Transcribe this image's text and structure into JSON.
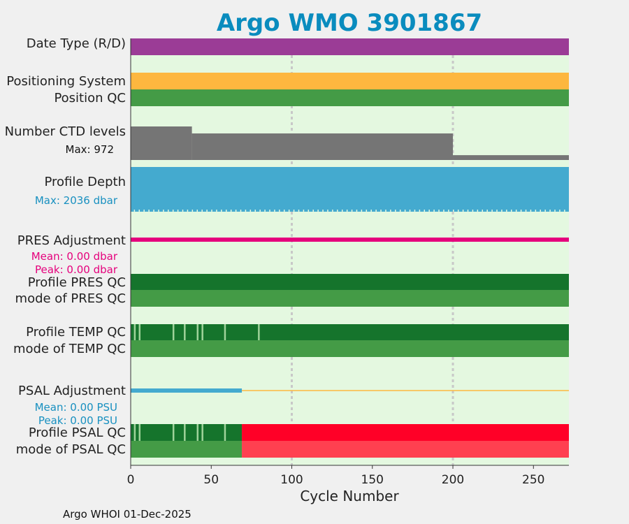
{
  "chart_data": {
    "type": "bar",
    "title": "Argo WMO 3901867",
    "xlabel": "Cycle Number",
    "xlim": [
      0,
      272
    ],
    "xticks": [
      0,
      50,
      100,
      150,
      200,
      250
    ],
    "grid_x": [
      100,
      200
    ],
    "footer": "Argo WHOI 01-Dec-2025",
    "rows": [
      {
        "key": "date_type",
        "label": "Date Type (R/D)",
        "segments": [
          {
            "x0": 0,
            "x1": 272,
            "color": "#9b3c96"
          }
        ]
      },
      {
        "key": "positioning",
        "label": "Positioning System",
        "segments": [
          {
            "x0": 0,
            "x1": 272,
            "color": "#fdb73f"
          }
        ]
      },
      {
        "key": "position_qc",
        "label": "Position QC",
        "segments": [
          {
            "x0": 0,
            "x1": 272,
            "color": "#449b46"
          }
        ]
      },
      {
        "key": "ctd_levels",
        "label": "Number CTD levels",
        "sublabel": "Max: 972",
        "steps": [
          {
            "x0": 0,
            "x1": 38,
            "value": 972
          },
          {
            "x0": 38,
            "x1": 200,
            "value": 770
          },
          {
            "x0": 200,
            "x1": 272,
            "value": 140
          }
        ],
        "ymax": 972,
        "color": "#757575"
      },
      {
        "key": "profile_depth",
        "label": "Profile Depth",
        "sublabel": "Max: 2036 dbar",
        "max_depth": 2036,
        "color": "#44aacf"
      },
      {
        "key": "pres_adj",
        "label": "PRES Adjustment",
        "sublabel": "Mean: 0.00 dbar",
        "sublabel2": "Peak: 0.00 dbar",
        "mean": 0.0,
        "peak": 0.0,
        "color": "#e5007c"
      },
      {
        "key": "profile_pres_qc",
        "label": "Profile PRES QC",
        "segments": [
          {
            "x0": 0,
            "x1": 272,
            "color": "#15742c"
          }
        ]
      },
      {
        "key": "mode_pres_qc",
        "label": "mode of PRES QC",
        "segments": [
          {
            "x0": 0,
            "x1": 272,
            "color": "#449b46"
          }
        ]
      },
      {
        "key": "profile_temp_qc",
        "label": "Profile TEMP QC",
        "segments": [
          {
            "x0": 0,
            "x1": 272,
            "color": "#15742c"
          }
        ],
        "flags": [
          2,
          5,
          26,
          33,
          41,
          44,
          58,
          79
        ],
        "flag_color": "#9fd39a"
      },
      {
        "key": "mode_temp_qc",
        "label": "mode of TEMP QC",
        "segments": [
          {
            "x0": 0,
            "x1": 272,
            "color": "#449b46"
          }
        ]
      },
      {
        "key": "psal_adj",
        "label": "PSAL Adjustment",
        "sublabel": "Mean: 0.00 PSU",
        "sublabel2": "Peak: 0.00 PSU",
        "mean": 0.0,
        "peak": 0.0,
        "thick": {
          "x0": 0,
          "x1": 69,
          "color": "#44aacf"
        },
        "thin": {
          "x0": 69,
          "x1": 272,
          "color": "#fdb73f"
        }
      },
      {
        "key": "profile_psal_qc",
        "label": "Profile PSAL QC",
        "segments": [
          {
            "x0": 0,
            "x1": 69,
            "color": "#15742c"
          },
          {
            "x0": 69,
            "x1": 272,
            "color": "#ff0027"
          }
        ],
        "flags": [
          2,
          5,
          26,
          33,
          41,
          44,
          58
        ],
        "flag_color": "#9fd39a"
      },
      {
        "key": "mode_psal_qc",
        "label": "mode of PSAL QC",
        "segments": [
          {
            "x0": 0,
            "x1": 69,
            "color": "#449b46"
          },
          {
            "x0": 69,
            "x1": 272,
            "color": "#ff4050"
          }
        ]
      }
    ],
    "colors": {
      "title": "#0a8cbe",
      "background": "#e4f8e0",
      "grid": "#c8c8c8",
      "label_sub_ctd": "#111111",
      "label_sub_depth": "#1890c0",
      "label_sub_pres": "#e5007c",
      "label_sub_psal": "#1890c0"
    }
  }
}
